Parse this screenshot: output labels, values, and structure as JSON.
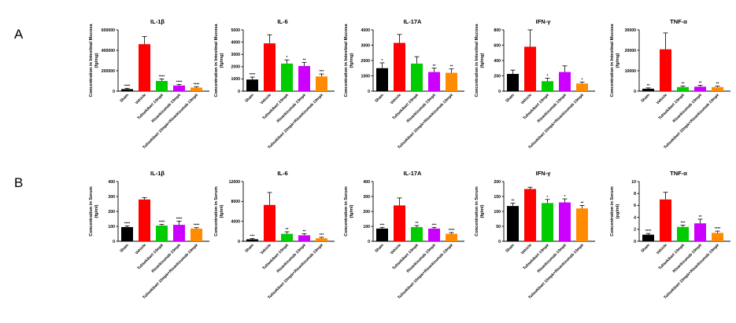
{
  "panels": [
    {
      "letter": "A"
    },
    {
      "letter": "B"
    }
  ],
  "colors": [
    "#000000",
    "#ff0000",
    "#00cc00",
    "#cc00ff",
    "#ff8c00"
  ],
  "chart_data": [
    {
      "type": "bar",
      "row": 0,
      "col": 0,
      "title": "IL-1β",
      "ylabel": [
        "Concentration in Intestinal Mucosa",
        "(fg/mg)"
      ],
      "categories": [
        "Sham",
        "Vehicle",
        "Tulisokibart 10mpk",
        "Risankizumab 10mpk",
        "Tulisokibart 10mpk+Risankizumab 10mpk"
      ],
      "values": [
        20000,
        460000,
        100000,
        55000,
        35000
      ],
      "errors": [
        8000,
        75000,
        20000,
        10000,
        9000
      ],
      "significance": [
        "****",
        "",
        "****",
        "****",
        "****"
      ],
      "ylim": [
        0,
        600000
      ],
      "yticks": [
        0,
        200000,
        400000,
        600000
      ]
    },
    {
      "type": "bar",
      "row": 0,
      "col": 1,
      "title": "IL-6",
      "ylabel": [
        "Concentration in Intestinal Mucosa",
        "(fg/mg)"
      ],
      "categories": [
        "Sham",
        "Vehicle",
        "Tulisokibart 10mpk",
        "Risankizumab 10mpk",
        "Tulisokibart 10mpk+Risankizumab 10mpk"
      ],
      "values": [
        950,
        3900,
        2250,
        2050,
        1200
      ],
      "errors": [
        200,
        700,
        300,
        300,
        200
      ],
      "significance": [
        "****",
        "",
        "*",
        "**",
        "***"
      ],
      "ylim": [
        0,
        5000
      ],
      "yticks": [
        0,
        1000,
        2000,
        3000,
        4000,
        5000
      ]
    },
    {
      "type": "bar",
      "row": 0,
      "col": 2,
      "title": "IL-17A",
      "ylabel": [
        "Concentration in Intestinal Mucosa",
        "(fg/mg)"
      ],
      "categories": [
        "Sham",
        "Vehicle",
        "Tulisokibart 10mpk",
        "Risankizumab 10mpk",
        "Tulisokibart 10mpk+Risankizumab 10mpk"
      ],
      "values": [
        1500,
        3150,
        1800,
        1250,
        1200
      ],
      "errors": [
        350,
        550,
        450,
        250,
        250
      ],
      "significance": [
        "*",
        "",
        "",
        "**",
        "**"
      ],
      "ylim": [
        0,
        4000
      ],
      "yticks": [
        0,
        1000,
        2000,
        3000,
        4000
      ]
    },
    {
      "type": "bar",
      "row": 0,
      "col": 3,
      "title": "IFN-γ",
      "ylabel": [
        "Concentration in Intestinal Mucosa",
        "(fg/mg)"
      ],
      "categories": [
        "Sham",
        "Vehicle",
        "Tulisokibart 10mpk",
        "Risankizumab 10mpk",
        "Tulisokibart 10mpk+Risankizumab 10mpk"
      ],
      "values": [
        225,
        580,
        130,
        250,
        100
      ],
      "errors": [
        50,
        220,
        40,
        80,
        20
      ],
      "significance": [
        "",
        "",
        "*",
        "",
        "*"
      ],
      "ylim": [
        0,
        800
      ],
      "yticks": [
        0,
        200,
        400,
        600,
        800
      ]
    },
    {
      "type": "bar",
      "row": 0,
      "col": 4,
      "title": "TNF-α",
      "ylabel": [
        "Concentration in Intestinal Mucosa",
        "(fg/mg)"
      ],
      "categories": [
        "Sham",
        "Vehicle",
        "Tulisokibart 10mpk",
        "Risankizumab 10mpk",
        "Tulisokibart 10mpk+Risankizumab 10mpk"
      ],
      "values": [
        1200,
        20500,
        2000,
        2200,
        2000
      ],
      "errors": [
        400,
        8000,
        500,
        700,
        500
      ],
      "significance": [
        "**",
        "",
        "**",
        "**",
        "**"
      ],
      "ylim": [
        0,
        30000
      ],
      "yticks": [
        0,
        10000,
        20000,
        30000
      ]
    },
    {
      "type": "bar",
      "row": 1,
      "col": 0,
      "title": "IL-1β",
      "ylabel": [
        "Concentration in Serum",
        "(fg/ml)"
      ],
      "categories": [
        "Sham",
        "Vehicle",
        "Tulisokibart 10mpk",
        "Risankizumab 10mpk",
        "Tulisokibart 10mpk+Risankizumab 10mpk"
      ],
      "values": [
        95,
        280,
        105,
        110,
        85
      ],
      "errors": [
        8,
        12,
        8,
        25,
        6
      ],
      "significance": [
        "****",
        "",
        "****",
        "****",
        "****"
      ],
      "ylim": [
        0,
        400
      ],
      "yticks": [
        0,
        100,
        200,
        300,
        400
      ]
    },
    {
      "type": "bar",
      "row": 1,
      "col": 1,
      "title": "IL-6",
      "ylabel": [
        "Concentration in Serum",
        "(fg/ml)"
      ],
      "categories": [
        "Sham",
        "Vehicle",
        "Tulisokibart 10mpk",
        "Risankizumab 10mpk",
        "Tulisokibart 10mpk+Risankizumab 10mpk"
      ],
      "values": [
        400,
        7300,
        1500,
        1200,
        600
      ],
      "errors": [
        150,
        2500,
        400,
        300,
        200
      ],
      "significance": [
        "***",
        "",
        "**",
        "**",
        "***"
      ],
      "ylim": [
        0,
        12000
      ],
      "yticks": [
        0,
        4000,
        8000,
        12000
      ]
    },
    {
      "type": "bar",
      "row": 1,
      "col": 2,
      "title": "IL-17A",
      "ylabel": [
        "Concentration in Serum",
        "(fg/ml)"
      ],
      "categories": [
        "Sham",
        "Vehicle",
        "Tulisokibart 10mpk",
        "Risankizumab 10mpk",
        "Tulisokibart 10mpk+Risankizumab 10mpk"
      ],
      "values": [
        85,
        240,
        95,
        85,
        50
      ],
      "errors": [
        8,
        50,
        10,
        8,
        8
      ],
      "significance": [
        "***",
        "",
        "**",
        "***",
        "****"
      ],
      "ylim": [
        0,
        400
      ],
      "yticks": [
        0,
        100,
        200,
        300,
        400
      ]
    },
    {
      "type": "bar",
      "row": 1,
      "col": 3,
      "title": "IFN-γ",
      "ylabel": [
        "Concentration in Serum",
        "(fg/ml)"
      ],
      "categories": [
        "Sham",
        "Vehicle",
        "Tulisokibart 10mpk",
        "Risankizumab 10mpk",
        "Tulisokibart 10mpk+Risankizumab 10mpk"
      ],
      "values": [
        118,
        175,
        128,
        130,
        110
      ],
      "errors": [
        10,
        6,
        12,
        12,
        10
      ],
      "significance": [
        "**",
        "",
        "*",
        "*",
        "**"
      ],
      "ylim": [
        0,
        200
      ],
      "yticks": [
        0,
        50,
        100,
        150,
        200
      ]
    },
    {
      "type": "bar",
      "row": 1,
      "col": 4,
      "title": "TNF-α",
      "ylabel": [
        "Concentration in Serum",
        "(pg/ml)"
      ],
      "categories": [
        "Sham",
        "Vehicle",
        "Tulisokibart 10mpk",
        "Risankizumab 10mpk",
        "Tulisokibart 10mpk+Risankizumab 10mpk"
      ],
      "values": [
        1.1,
        7.0,
        2.4,
        3.0,
        1.4
      ],
      "errors": [
        0.2,
        1.2,
        0.3,
        0.7,
        0.3
      ],
      "significance": [
        "****",
        "",
        "***",
        "**",
        "****"
      ],
      "ylim": [
        0,
        10
      ],
      "yticks": [
        0,
        2,
        4,
        6,
        8,
        10
      ]
    }
  ]
}
